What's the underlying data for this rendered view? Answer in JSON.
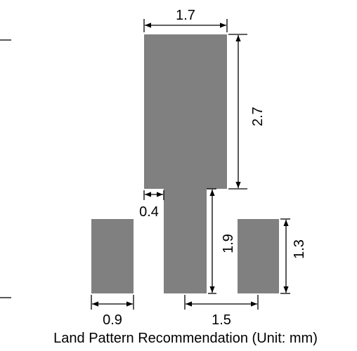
{
  "figure": {
    "caption": "Land Pattern Recommendation (Unit: mm)",
    "pad_color": "#808080",
    "line_color": "#000000"
  },
  "dimensions": {
    "top_width": "1.7",
    "top_height": "2.7",
    "stem_offset": "0.4",
    "stem_height": "1.9",
    "right_pad_height": "1.3",
    "left_pad_width": "0.9",
    "pad_spacing": "1.5"
  }
}
